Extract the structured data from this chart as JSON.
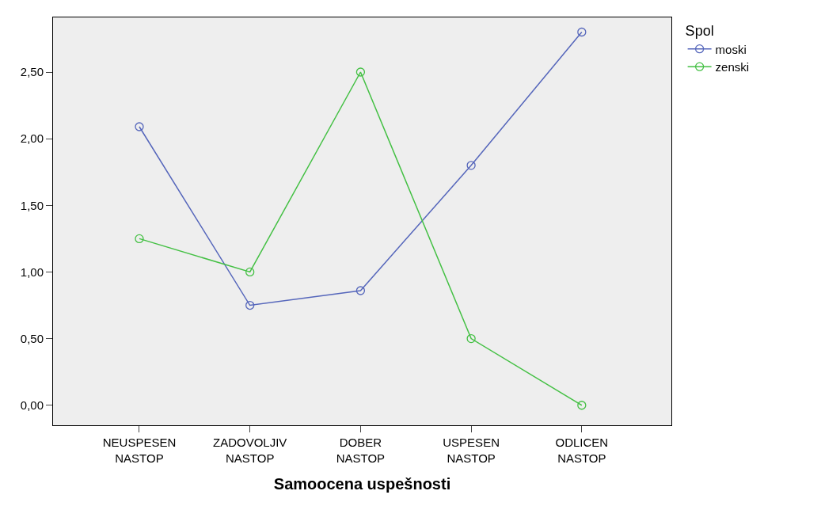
{
  "chart_data": {
    "type": "line",
    "xlabel": "Samoocena uspešnosti",
    "legend_title": "Spol",
    "legend": "right",
    "marker": "circle",
    "line_style": "solid",
    "grid": false,
    "categories": [
      "NEUSPESEN\nNASTOP",
      "ZADOVOLJIV\nNASTOP",
      "DOBER\nNASTOP",
      "USPESEN\nNASTOP",
      "ODLICEN\nNASTOP"
    ],
    "ylim": [
      -0.15,
      2.91
    ],
    "yticks": [
      {
        "value": 0,
        "label": "0,00"
      },
      {
        "value": 0.5,
        "label": "0,50"
      },
      {
        "value": 1,
        "label": "1,00"
      },
      {
        "value": 1.5,
        "label": "1,50"
      },
      {
        "value": 2,
        "label": "2,00"
      },
      {
        "value": 2.5,
        "label": "2,50"
      }
    ],
    "series": [
      {
        "name": "moski",
        "color": "#5566bb",
        "values": [
          2.09,
          0.75,
          0.86,
          1.8,
          2.8
        ]
      },
      {
        "name": "zenski",
        "color": "#44c044",
        "values": [
          1.25,
          1.0,
          2.5,
          0.5,
          0.0
        ]
      }
    ]
  }
}
